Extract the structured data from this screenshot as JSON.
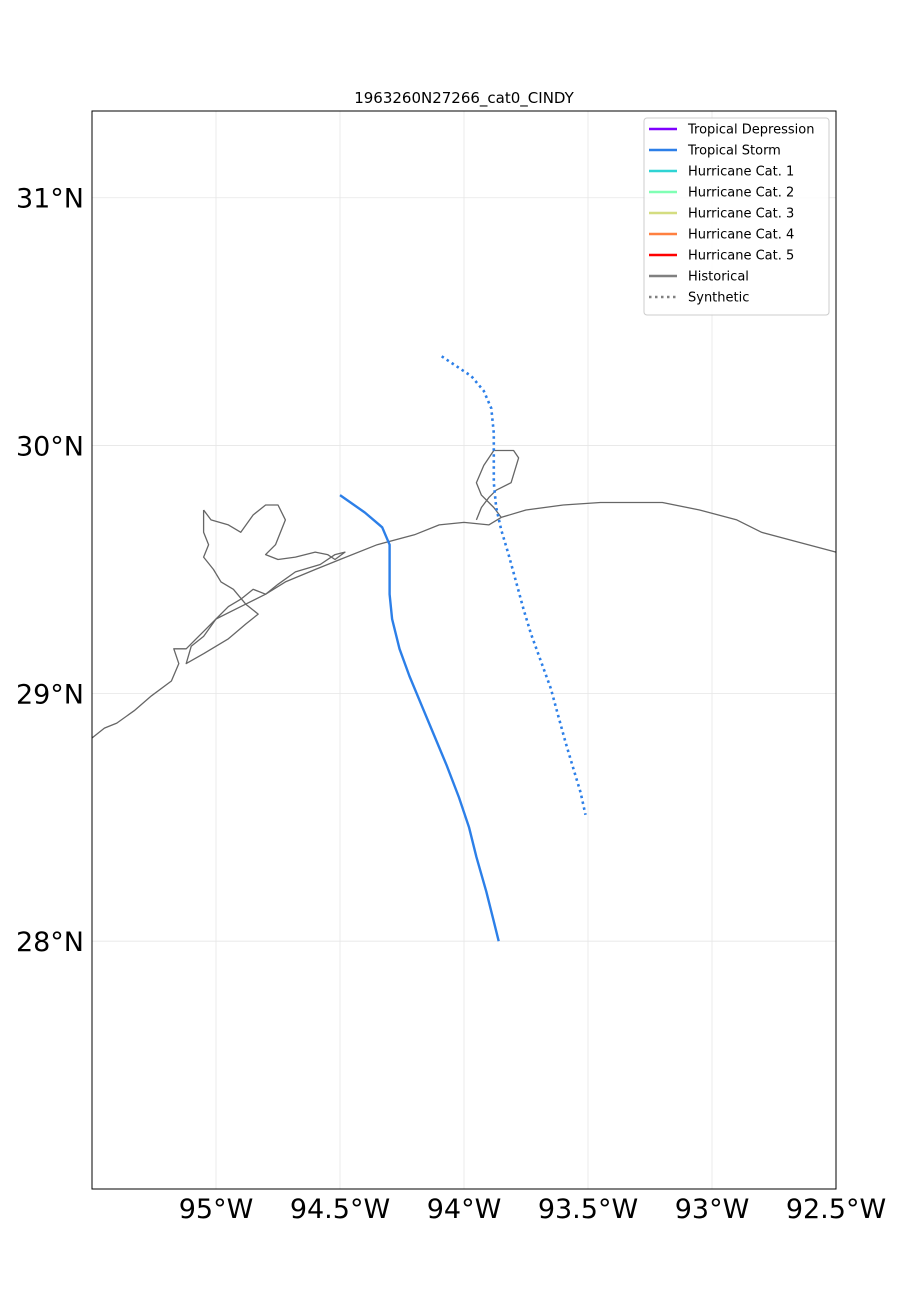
{
  "title": "1963260N27266_cat0_CINDY",
  "chart_data": {
    "type": "line",
    "title": "1963260N27266_cat0_CINDY",
    "xlabel": "",
    "ylabel": "",
    "xlim": [
      -95.5,
      -92.5
    ],
    "ylim": [
      27.0,
      31.35
    ],
    "grid": true,
    "legend_position": "top-right",
    "x_ticks": [
      {
        "value": -95.0,
        "label": "95°W"
      },
      {
        "value": -94.5,
        "label": "94.5°W"
      },
      {
        "value": -94.0,
        "label": "94°W"
      },
      {
        "value": -93.5,
        "label": "93.5°W"
      },
      {
        "value": -93.0,
        "label": "93°W"
      },
      {
        "value": -92.5,
        "label": "92.5°W"
      }
    ],
    "y_ticks": [
      {
        "value": 28.0,
        "label": "28°N"
      },
      {
        "value": 29.0,
        "label": "29°N"
      },
      {
        "value": 30.0,
        "label": "30°N"
      },
      {
        "value": 31.0,
        "label": "31°N"
      }
    ],
    "legend": [
      {
        "label": "Tropical Depression",
        "color": "#7f00ff",
        "style": "solid"
      },
      {
        "label": "Tropical Storm",
        "color": "#2c7fe8",
        "style": "solid"
      },
      {
        "label": "Hurricane Cat. 1",
        "color": "#2fd4d4",
        "style": "solid"
      },
      {
        "label": "Hurricane Cat. 2",
        "color": "#80ffb4",
        "style": "solid"
      },
      {
        "label": "Hurricane Cat. 3",
        "color": "#d4dd80",
        "style": "solid"
      },
      {
        "label": "Hurricane Cat. 4",
        "color": "#ff8040",
        "style": "solid"
      },
      {
        "label": "Hurricane Cat. 5",
        "color": "#ff0000",
        "style": "solid"
      },
      {
        "label": "Historical",
        "color": "#808080",
        "style": "solid"
      },
      {
        "label": "Synthetic",
        "color": "#808080",
        "style": "dotted"
      }
    ],
    "series": [
      {
        "kind": "historical",
        "category_color": "#2c7fe8",
        "points": [
          [
            -94.5,
            29.8
          ],
          [
            -94.4,
            29.73
          ],
          [
            -94.33,
            29.67
          ],
          [
            -94.3,
            29.6
          ],
          [
            -94.3,
            29.5
          ],
          [
            -94.3,
            29.4
          ],
          [
            -94.29,
            29.3
          ],
          [
            -94.26,
            29.18
          ],
          [
            -94.22,
            29.07
          ],
          [
            -94.17,
            28.95
          ],
          [
            -94.12,
            28.83
          ],
          [
            -94.07,
            28.71
          ],
          [
            -94.02,
            28.58
          ],
          [
            -93.98,
            28.46
          ],
          [
            -93.95,
            28.34
          ],
          [
            -93.91,
            28.2
          ],
          [
            -93.88,
            28.08
          ],
          [
            -93.86,
            28.0
          ]
        ]
      },
      {
        "kind": "synthetic",
        "category_color": "#2c7fe8",
        "points": [
          [
            -94.09,
            30.36
          ],
          [
            -94.03,
            30.32
          ],
          [
            -93.97,
            30.28
          ],
          [
            -93.92,
            30.22
          ],
          [
            -93.89,
            30.15
          ],
          [
            -93.88,
            30.05
          ],
          [
            -93.88,
            29.95
          ],
          [
            -93.88,
            29.85
          ],
          [
            -93.87,
            29.75
          ],
          [
            -93.85,
            29.66
          ],
          [
            -93.82,
            29.56
          ],
          [
            -93.79,
            29.45
          ],
          [
            -93.76,
            29.34
          ],
          [
            -93.73,
            29.24
          ],
          [
            -93.69,
            29.13
          ],
          [
            -93.65,
            29.02
          ],
          [
            -93.62,
            28.91
          ],
          [
            -93.59,
            28.8
          ],
          [
            -93.56,
            28.7
          ],
          [
            -93.53,
            28.6
          ],
          [
            -93.51,
            28.51
          ]
        ]
      }
    ],
    "coastline": [
      [
        [
          -95.5,
          28.82
        ],
        [
          -95.45,
          28.86
        ],
        [
          -95.4,
          28.88
        ],
        [
          -95.33,
          28.93
        ],
        [
          -95.26,
          28.99
        ],
        [
          -95.18,
          29.05
        ],
        [
          -95.15,
          29.12
        ],
        [
          -95.17,
          29.18
        ],
        [
          -95.12,
          29.18
        ],
        [
          -95.05,
          29.25
        ],
        [
          -95.0,
          29.3
        ],
        [
          -94.9,
          29.35
        ],
        [
          -94.8,
          29.4
        ],
        [
          -94.72,
          29.45
        ],
        [
          -94.6,
          29.5
        ],
        [
          -94.5,
          29.54
        ],
        [
          -94.35,
          29.6
        ],
        [
          -94.2,
          29.64
        ],
        [
          -94.1,
          29.68
        ],
        [
          -94.0,
          29.69
        ],
        [
          -93.9,
          29.68
        ],
        [
          -93.85,
          29.71
        ],
        [
          -93.75,
          29.74
        ],
        [
          -93.6,
          29.76
        ],
        [
          -93.45,
          29.77
        ],
        [
          -93.3,
          29.77
        ],
        [
          -93.2,
          29.77
        ],
        [
          -93.05,
          29.74
        ],
        [
          -92.9,
          29.7
        ],
        [
          -92.8,
          29.65
        ],
        [
          -92.65,
          29.61
        ],
        [
          -92.5,
          29.57
        ]
      ],
      [
        [
          -95.05,
          29.74
        ],
        [
          -95.02,
          29.7
        ],
        [
          -94.95,
          29.68
        ],
        [
          -94.9,
          29.65
        ],
        [
          -94.85,
          29.72
        ],
        [
          -94.8,
          29.76
        ],
        [
          -94.75,
          29.76
        ],
        [
          -94.72,
          29.7
        ],
        [
          -94.76,
          29.6
        ],
        [
          -94.8,
          29.56
        ],
        [
          -94.75,
          29.54
        ],
        [
          -94.68,
          29.55
        ],
        [
          -94.6,
          29.57
        ],
        [
          -94.55,
          29.56
        ],
        [
          -94.52,
          29.54
        ],
        [
          -94.48,
          29.57
        ],
        [
          -94.52,
          29.56
        ],
        [
          -94.58,
          29.52
        ],
        [
          -94.68,
          29.49
        ],
        [
          -94.75,
          29.44
        ],
        [
          -94.8,
          29.4
        ],
        [
          -94.85,
          29.42
        ],
        [
          -94.9,
          29.38
        ],
        [
          -94.95,
          29.35
        ],
        [
          -95.0,
          29.3
        ],
        [
          -95.05,
          29.23
        ],
        [
          -95.1,
          29.19
        ],
        [
          -95.12,
          29.12
        ],
        [
          -95.05,
          29.16
        ],
        [
          -94.95,
          29.22
        ],
        [
          -94.88,
          29.28
        ],
        [
          -94.83,
          29.32
        ],
        [
          -94.88,
          29.36
        ],
        [
          -94.93,
          29.42
        ],
        [
          -94.98,
          29.45
        ],
        [
          -95.01,
          29.5
        ],
        [
          -95.05,
          29.55
        ],
        [
          -95.03,
          29.6
        ],
        [
          -95.05,
          29.65
        ],
        [
          -95.05,
          29.74
        ]
      ],
      [
        [
          -93.95,
          29.7
        ],
        [
          -93.93,
          29.75
        ],
        [
          -93.9,
          29.79
        ],
        [
          -93.87,
          29.82
        ],
        [
          -93.81,
          29.85
        ],
        [
          -93.78,
          29.95
        ],
        [
          -93.8,
          29.98
        ],
        [
          -93.88,
          29.98
        ],
        [
          -93.92,
          29.92
        ],
        [
          -93.95,
          29.85
        ],
        [
          -93.93,
          29.8
        ],
        [
          -93.88,
          29.75
        ],
        [
          -93.85,
          29.71
        ]
      ]
    ]
  }
}
